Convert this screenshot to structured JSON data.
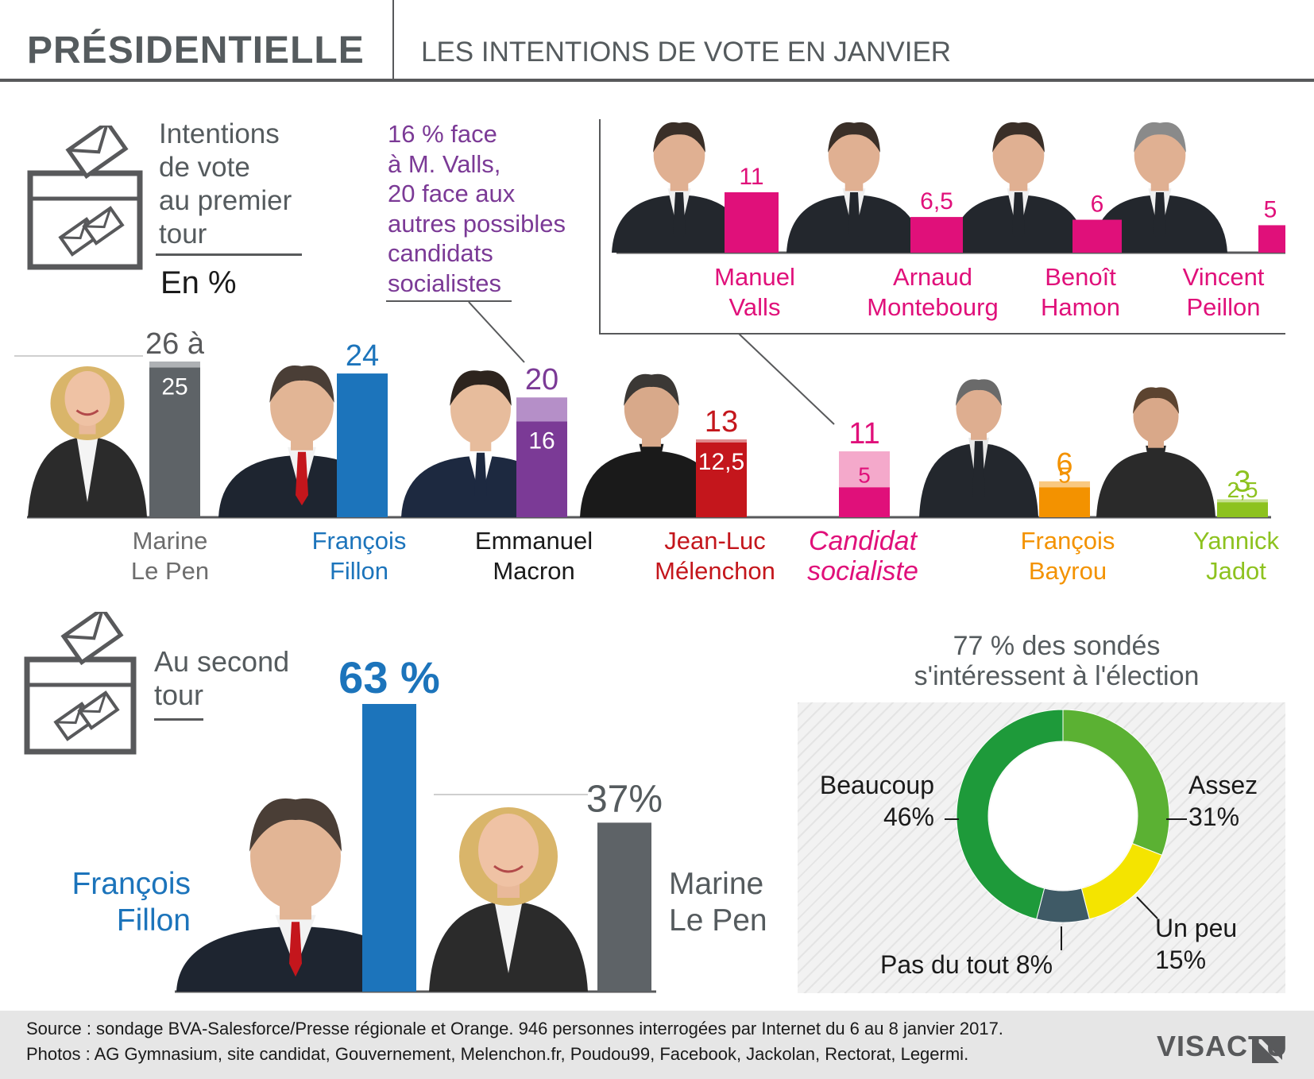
{
  "header": {
    "title": "PRÉSIDENTIELLE",
    "subtitle": "LES INTENTIONS DE VOTE EN JANVIER"
  },
  "first_round": {
    "intro": [
      "Intentions",
      "de vote",
      "au premier",
      "tour"
    ],
    "unit": "En %",
    "note": [
      "16 % face",
      "à M. Valls,",
      "20 face aux",
      "autres possibles",
      "candidats",
      "socialistes"
    ],
    "candidates": [
      {
        "name": [
          "Marine",
          "Le Pen"
        ],
        "high_label": "26 à",
        "low_label": "25",
        "color": "#5e6367",
        "light": "#aeb1b4",
        "name_color": "#6d6d6d"
      },
      {
        "name": [
          "François",
          "Fillon"
        ],
        "high_label": "24",
        "low_label": "",
        "color": "#1c74bb",
        "light": "#1c74bb",
        "name_color": "#1c74bb"
      },
      {
        "name": [
          "Emmanuel",
          "Macron"
        ],
        "high_label": "20",
        "low_label": "16",
        "color": "#7b3a96",
        "light": "#b58fc8",
        "name_color": "#1a1a1a"
      },
      {
        "name": [
          "Jean-Luc",
          "Mélenchon"
        ],
        "high_label": "13",
        "low_label": "12,5",
        "color": "#c4161c",
        "light": "#e08a8d",
        "name_color": "#c4161c"
      },
      {
        "name": [
          "Candidat",
          "socialiste"
        ],
        "high_label": "11",
        "low_label": "5",
        "color": "#e0107a",
        "light": "#f4a9cb",
        "name_color": "#e0107a"
      },
      {
        "name": [
          "François",
          "Bayrou"
        ],
        "high_label": "6",
        "low_label": "5",
        "color": "#f39200",
        "light": "#f9c880",
        "name_color": "#f39200"
      },
      {
        "name": [
          "Yannick",
          "Jadot"
        ],
        "high_label": "3",
        "low_label": "2,5",
        "color": "#8dc21f",
        "light": "#c6e08f",
        "name_color": "#8dc21f"
      }
    ],
    "socialist_inset": [
      {
        "name": [
          "Manuel",
          "Valls"
        ],
        "label": "11"
      },
      {
        "name": [
          "Arnaud",
          "Montebourg"
        ],
        "label": "6,5"
      },
      {
        "name": [
          "Benoît",
          "Hamon"
        ],
        "label": "6"
      },
      {
        "name": [
          "Vincent",
          "Peillon"
        ],
        "label": "5"
      }
    ]
  },
  "second_round": {
    "intro": [
      "Au second",
      "tour"
    ],
    "fillon": {
      "name": [
        "François",
        "Fillon"
      ],
      "label": "63 %"
    },
    "lepen": {
      "name": [
        "Marine",
        "Le Pen"
      ],
      "label": "37%"
    }
  },
  "interest": {
    "title": [
      "77 % des sondés",
      "s'intéressent à l'élection"
    ],
    "segments": [
      {
        "label": "Assez",
        "value_label": "31%"
      },
      {
        "label": "Un peu",
        "value_label": "15%"
      },
      {
        "label": "Pas du tout",
        "value_label": "8%"
      },
      {
        "label": "Beaucoup",
        "value_label": "46%"
      }
    ]
  },
  "footer": {
    "source": "Source : sondage BVA-Salesforce/Presse régionale et Orange. 946 personnes interrogées par Internet du 6 au 8 janvier 2017.",
    "photos": "Photos : AG Gymnasium, site candidat, Gouvernement, Melenchon.fr, Poudou99, Facebook, Jackolan, Rectorat, Legermi.",
    "logo": "VISACTU"
  },
  "chart_data": [
    {
      "type": "bar",
      "categories": [
        "Marine Le Pen",
        "François Fillon",
        "Emmanuel Macron",
        "Jean-Luc Mélenchon",
        "Candidat socialiste",
        "François Bayrou",
        "Yannick Jadot"
      ],
      "series": [
        {
          "values": [
            26,
            24,
            20,
            13,
            11,
            6,
            3
          ]
        },
        {
          "values": [
            25,
            24,
            16,
            12.5,
            5,
            5,
            2.5
          ]
        }
      ],
      "ylim": [
        0,
        26
      ]
    },
    {
      "type": "bar",
      "categories": [
        "Manuel Valls",
        "Arnaud Montebourg",
        "Benoît Hamon",
        "Vincent Peillon"
      ],
      "values": [
        11,
        6.5,
        6,
        5
      ],
      "ylim": [
        0,
        11
      ]
    },
    {
      "type": "bar",
      "categories": [
        "François Fillon",
        "Marine Le Pen"
      ],
      "values": [
        63,
        37
      ],
      "ylim": [
        0,
        63
      ]
    },
    {
      "type": "pie",
      "title": "77 % des sondés s'intéressent à l'élection",
      "categories": [
        "Assez",
        "Un peu",
        "Pas du tout",
        "Beaucoup"
      ],
      "values": [
        31,
        15,
        8,
        46
      ],
      "colors": [
        "#5bb133",
        "#f4e400",
        "#3f5a66",
        "#1e9a3a"
      ]
    }
  ]
}
